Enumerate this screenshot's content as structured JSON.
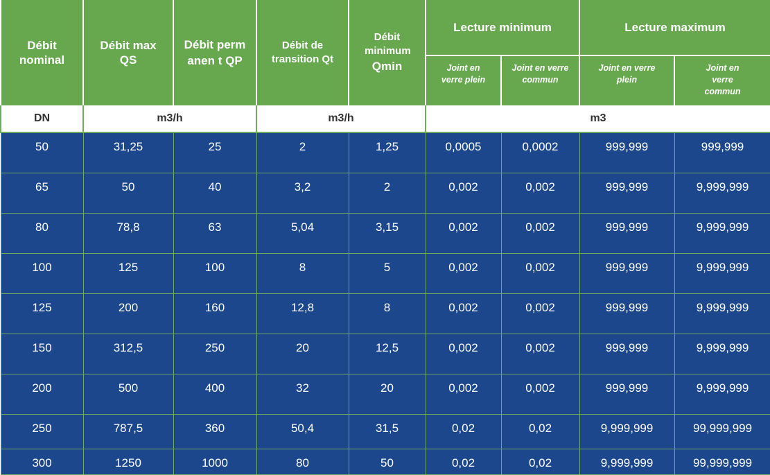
{
  "header": {
    "debit_nominal": "Débit nominal",
    "debit_max": "Débit max QS",
    "debit_permanent": "Débit permanen t QP",
    "debit_transition": "Débit de transition Qt",
    "debit_min_label": "Débit minimum",
    "debit_min_sym": "Qmin",
    "lecture_min": "Lecture minimum",
    "lecture_max": "Lecture maximum",
    "joint_plein": "Joint en verre plein",
    "joint_commun": "Joint en verre commun"
  },
  "units": {
    "dn": "DN",
    "flow1": "m3/h",
    "flow2": "m3/h",
    "volume": "m3"
  },
  "rows": [
    [
      "50",
      "31,25",
      "25",
      "2",
      "1,25",
      "0,0005",
      "0,0002",
      "999,999",
      "999,999"
    ],
    [
      "65",
      "50",
      "40",
      "3,2",
      "2",
      "0,002",
      "0,002",
      "999,999",
      "9,999,999"
    ],
    [
      "80",
      "78,8",
      "63",
      "5,04",
      "3,15",
      "0,002",
      "0,002",
      "999,999",
      "9,999,999"
    ],
    [
      "100",
      "125",
      "100",
      "8",
      "5",
      "0,002",
      "0,002",
      "999,999",
      "9,999,999"
    ],
    [
      "125",
      "200",
      "160",
      "12,8",
      "8",
      "0,002",
      "0,002",
      "999,999",
      "9,999,999"
    ],
    [
      "150",
      "312,5",
      "250",
      "20",
      "12,5",
      "0,002",
      "0,002",
      "999,999",
      "9,999,999"
    ],
    [
      "200",
      "500",
      "400",
      "32",
      "20",
      "0,002",
      "0,002",
      "999,999",
      "9,999,999"
    ],
    [
      "250",
      "787,5",
      "360",
      "50,4",
      "31,5",
      "0,02",
      "0,02",
      "9,999,999",
      "99,999,999"
    ],
    [
      "300",
      "1250",
      "1000",
      "80",
      "50",
      "0,02",
      "0,02",
      "9,999,999",
      "99,999,999"
    ]
  ]
}
